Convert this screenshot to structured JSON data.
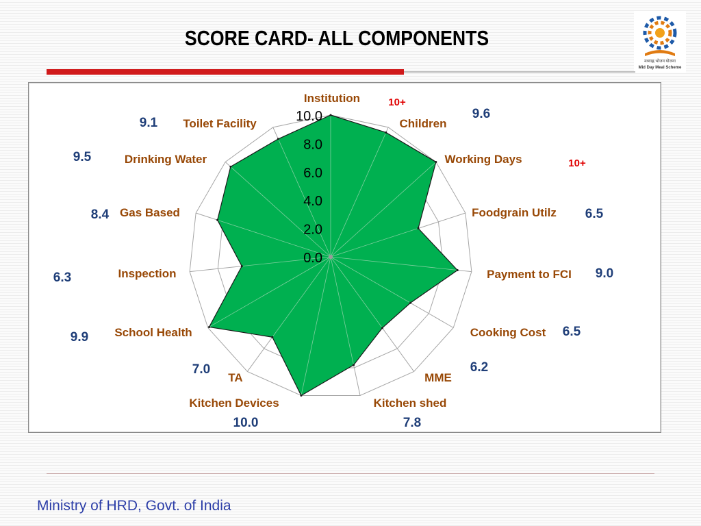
{
  "slide": {
    "title": "SCORE CARD- ALL COMPONENTS",
    "footer": "Ministry of HRD, Govt. of India",
    "logo_text_hindi": "मध्याह्न भोजन योजना",
    "logo_text_english": "Mid Day Meal Scheme"
  },
  "colors": {
    "accent_red": "#d0191a",
    "series_fill": "#00b050",
    "category_label": "#984806",
    "score_label": "#1f3e78",
    "plus_label": "#e00000",
    "footer_text": "#2d3fa8"
  },
  "chart_data": {
    "type": "radar",
    "title": "",
    "categories": [
      "Institution",
      "Children",
      "Working Days",
      "Foodgrain Utilz",
      "Payment to FCI",
      "Cooking Cost",
      "MME",
      "Kitchen shed",
      "Kitchen Devices",
      "TA",
      "School Health",
      "Inspection",
      "Gas Based",
      "Drinking  Water",
      "Toilet Facility"
    ],
    "series": [
      {
        "values": [
          10.0,
          9.6,
          10.0,
          6.5,
          9.0,
          6.5,
          6.2,
          7.8,
          10.0,
          7.0,
          9.9,
          6.3,
          8.4,
          9.5,
          9.1
        ]
      }
    ],
    "score_labels": [
      "10+",
      "9.6",
      "10+",
      "6.5",
      "9.0",
      "6.5",
      "6.2",
      "7.8",
      "10.0",
      "7.0",
      "9.9",
      "6.3",
      "8.4",
      "9.5",
      "9.1"
    ],
    "radial_ticks": [
      "0.0",
      "2.0",
      "4.0",
      "6.0",
      "8.0",
      "10.0"
    ],
    "rlim": [
      0,
      10
    ],
    "grid": true,
    "legend": "none"
  }
}
